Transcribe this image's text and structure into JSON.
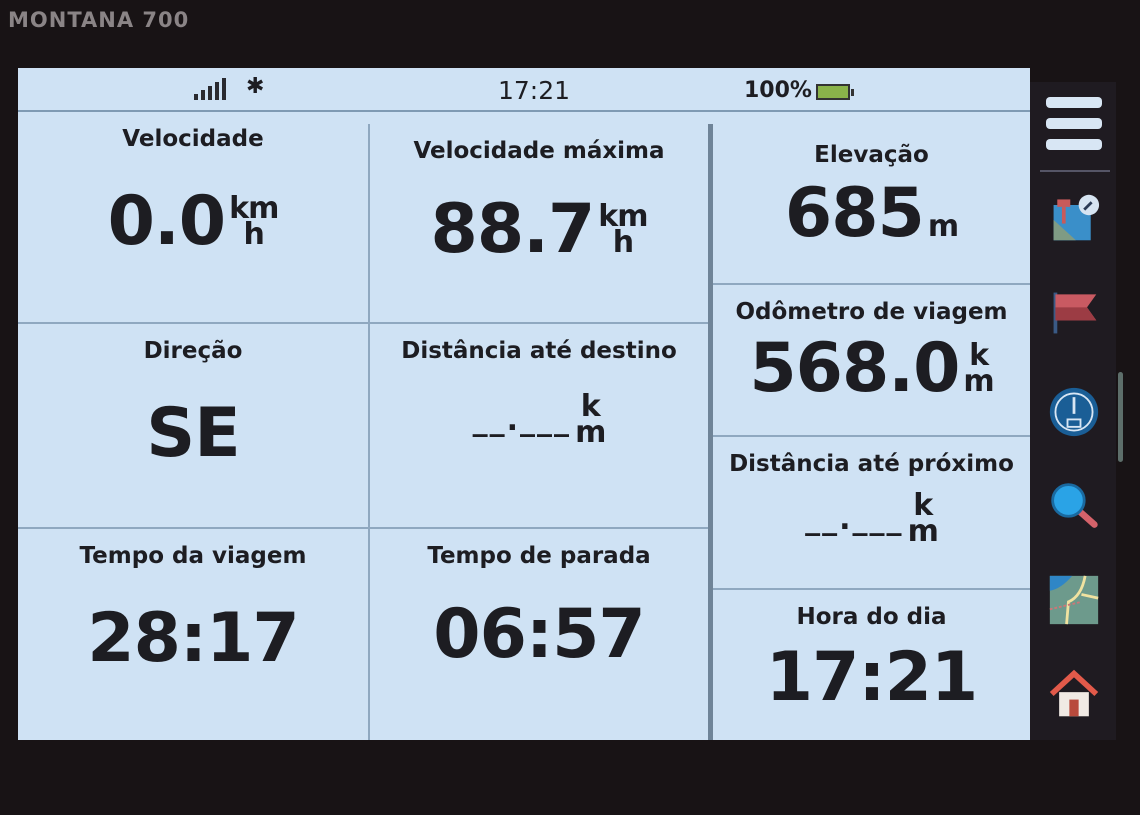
{
  "device_label": "MONTANA 700",
  "status": {
    "time": "17:21",
    "battery": "100%",
    "icons": [
      "signal-bars-icon",
      "bluetooth-icon",
      "battery-charging-icon"
    ]
  },
  "fields": [
    {
      "label": "Velocidade",
      "value": "0.0",
      "unit_top": "km",
      "unit_bottom": "h"
    },
    {
      "label": "Velocidade máxima",
      "value": "88.7",
      "unit_top": "km",
      "unit_bottom": "h"
    },
    {
      "label": "Elevação",
      "value": "685",
      "unit_top": "",
      "unit_bottom": "m"
    },
    {
      "label": "Direção",
      "value": "SE"
    },
    {
      "label": "Distância até destino",
      "value": "__.___",
      "unit_top": "k",
      "unit_bottom": "m"
    },
    {
      "label": "Odômetro de viagem",
      "value": "568.0",
      "unit_top": "k",
      "unit_bottom": "m"
    },
    {
      "label": "Distância até próximo",
      "value": "__.___",
      "unit_top": "k",
      "unit_bottom": "m"
    },
    {
      "label": "Tempo da viagem",
      "value": "28:17"
    },
    {
      "label": "Tempo de parada",
      "value": "06:57"
    },
    {
      "label": "Hora do dia",
      "value": "17:21"
    }
  ],
  "sidebar": [
    "menu-icon",
    "waypoint-manager-icon",
    "flag-icon",
    "trip-computer-icon",
    "search-icon",
    "map-icon",
    "home-icon"
  ]
}
